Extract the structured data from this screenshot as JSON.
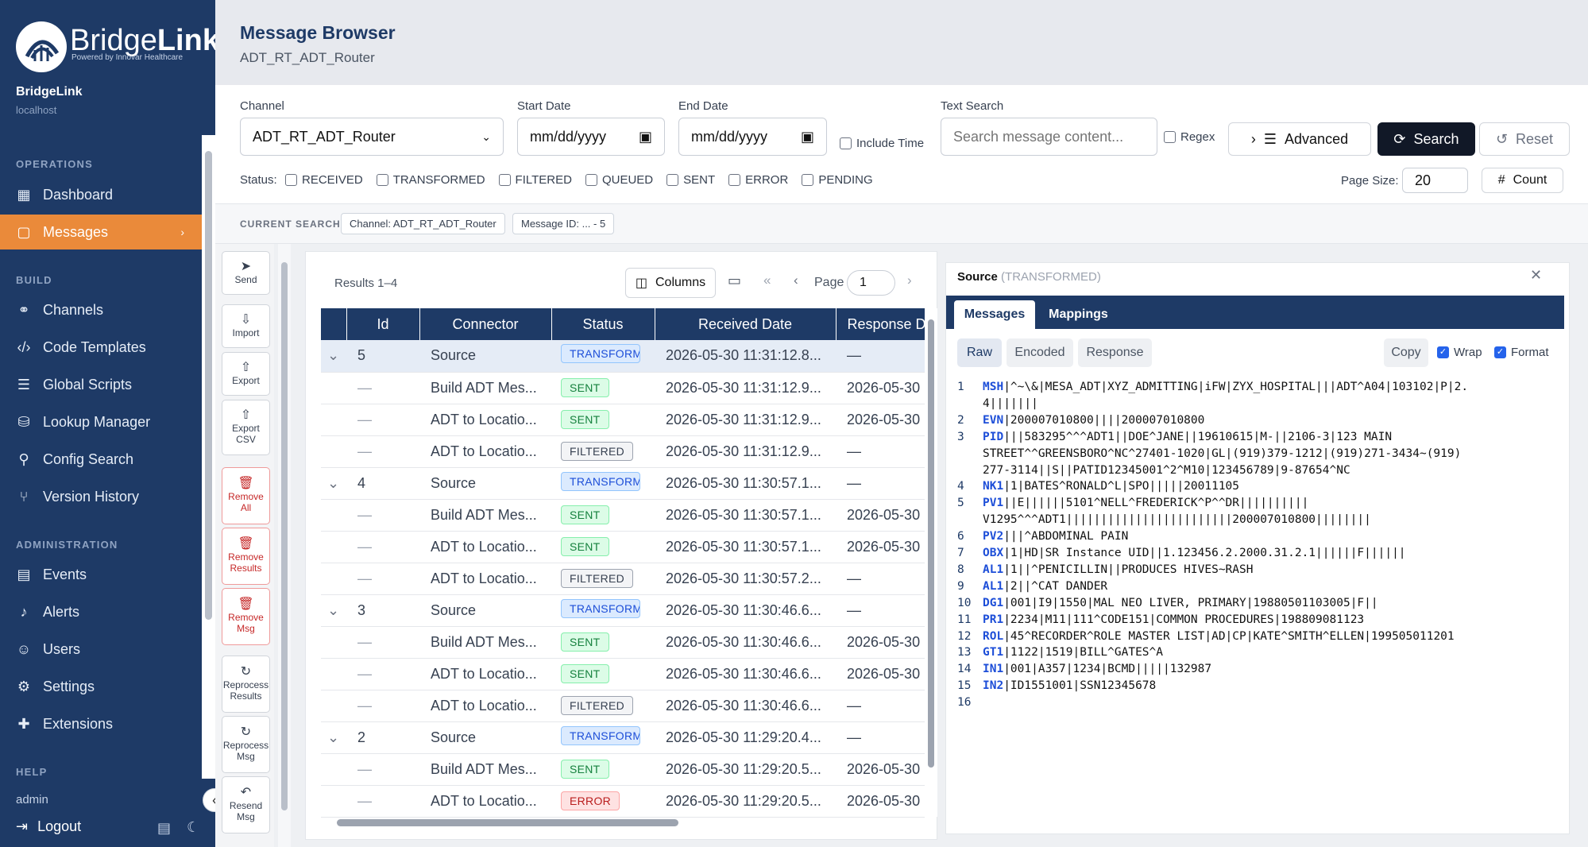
{
  "sidebar": {
    "logo_brand_light": "Bridge",
    "logo_brand_bold": "Link",
    "logo_tagline": "Powered by Innovar Healthcare",
    "app_name": "BridgeLink",
    "host": "localhost",
    "section_operations": "OPERATIONS",
    "section_build": "BUILD",
    "section_administration": "ADMINISTRATION",
    "section_help": "HELP",
    "items": [
      {
        "label": "Dashboard",
        "icon": "grid-icon"
      },
      {
        "label": "Messages",
        "icon": "message-icon",
        "active": true
      },
      {
        "label": "Channels",
        "icon": "channels-icon"
      },
      {
        "label": "Code Templates",
        "icon": "code-icon"
      },
      {
        "label": "Global Scripts",
        "icon": "script-icon"
      },
      {
        "label": "Lookup Manager",
        "icon": "database-icon"
      },
      {
        "label": "Config Search",
        "icon": "search-icon"
      },
      {
        "label": "Version History",
        "icon": "git-branch-icon"
      },
      {
        "label": "Events",
        "icon": "clipboard-icon"
      },
      {
        "label": "Alerts",
        "icon": "bell-icon"
      },
      {
        "label": "Users",
        "icon": "users-icon"
      },
      {
        "label": "Settings",
        "icon": "gear-icon"
      },
      {
        "label": "Extensions",
        "icon": "puzzle-icon"
      }
    ],
    "user": "admin",
    "logout": "Logout"
  },
  "header": {
    "title": "Message Browser",
    "subtitle": "ADT_RT_ADT_Router"
  },
  "filters": {
    "channel_label": "Channel",
    "channel_value": "ADT_RT_ADT_Router",
    "start_label": "Start Date",
    "start_placeholder": "mm/dd/yyyy",
    "end_label": "End Date",
    "end_placeholder": "mm/dd/yyyy",
    "include_time": "Include Time",
    "text_search_label": "Text Search",
    "text_search_placeholder": "Search message content...",
    "regex": "Regex",
    "advanced": "Advanced",
    "search": "Search",
    "reset": "Reset",
    "status_label": "Status:",
    "statuses": [
      "RECEIVED",
      "TRANSFORMED",
      "FILTERED",
      "QUEUED",
      "SENT",
      "ERROR",
      "PENDING"
    ],
    "page_size_label": "Page Size:",
    "page_size": "20",
    "count": "Count"
  },
  "current_search": {
    "label": "CURRENT SEARCH",
    "chips": [
      "Channel: ADT_RT_ADT_Router",
      "Message ID: ... - 5"
    ]
  },
  "tools": [
    {
      "label": "Send",
      "icon": "send-icon",
      "danger": false
    },
    {
      "label": "Import",
      "icon": "import-icon",
      "danger": false
    },
    {
      "label": "Export",
      "icon": "export-icon",
      "danger": false
    },
    {
      "label": "Export CSV",
      "icon": "export-csv-icon",
      "danger": false
    },
    {
      "label": "Remove All",
      "icon": "trash-icon",
      "danger": true
    },
    {
      "label": "Remove Results",
      "icon": "trash-icon",
      "danger": true
    },
    {
      "label": "Remove Msg",
      "icon": "trash-icon",
      "danger": true
    },
    {
      "label": "Reprocess Results",
      "icon": "refresh-icon",
      "danger": false
    },
    {
      "label": "Reprocess Msg",
      "icon": "refresh-icon",
      "danger": false
    },
    {
      "label": "Resend Msg",
      "icon": "undo-icon",
      "danger": false
    }
  ],
  "results": {
    "summary": "Results 1–4",
    "columns_button": "Columns",
    "page_label": "Page",
    "page_value": "1",
    "headers": [
      "Id",
      "Connector",
      "Status",
      "Received Date",
      "Response Date"
    ],
    "rows": [
      {
        "expander": "⌄",
        "id": "5",
        "connector": "Source",
        "status": "TRANSFORMED",
        "received": "2026-05-30 11:31:12.8...",
        "response": "—",
        "source": true,
        "selected": true
      },
      {
        "expander": "",
        "id": "—",
        "connector": "Build ADT Mes...",
        "status": "SENT",
        "received": "2026-05-30 11:31:12.9...",
        "response": "2026-05-30"
      },
      {
        "expander": "",
        "id": "—",
        "connector": "ADT to Locatio...",
        "status": "SENT",
        "received": "2026-05-30 11:31:12.9...",
        "response": "2026-05-30"
      },
      {
        "expander": "",
        "id": "—",
        "connector": "ADT to Locatio...",
        "status": "FILTERED",
        "received": "2026-05-30 11:31:12.9...",
        "response": "—"
      },
      {
        "expander": "⌄",
        "id": "4",
        "connector": "Source",
        "status": "TRANSFORMED",
        "received": "2026-05-30 11:30:57.1...",
        "response": "—",
        "source": true
      },
      {
        "expander": "",
        "id": "—",
        "connector": "Build ADT Mes...",
        "status": "SENT",
        "received": "2026-05-30 11:30:57.1...",
        "response": "2026-05-30"
      },
      {
        "expander": "",
        "id": "—",
        "connector": "ADT to Locatio...",
        "status": "SENT",
        "received": "2026-05-30 11:30:57.1...",
        "response": "2026-05-30"
      },
      {
        "expander": "",
        "id": "—",
        "connector": "ADT to Locatio...",
        "status": "FILTERED",
        "received": "2026-05-30 11:30:57.2...",
        "response": "—"
      },
      {
        "expander": "⌄",
        "id": "3",
        "connector": "Source",
        "status": "TRANSFORMED",
        "received": "2026-05-30 11:30:46.6...",
        "response": "—",
        "source": true
      },
      {
        "expander": "",
        "id": "—",
        "connector": "Build ADT Mes...",
        "status": "SENT",
        "received": "2026-05-30 11:30:46.6...",
        "response": "2026-05-30"
      },
      {
        "expander": "",
        "id": "—",
        "connector": "ADT to Locatio...",
        "status": "SENT",
        "received": "2026-05-30 11:30:46.6...",
        "response": "2026-05-30"
      },
      {
        "expander": "",
        "id": "—",
        "connector": "ADT to Locatio...",
        "status": "FILTERED",
        "received": "2026-05-30 11:30:46.6...",
        "response": "—"
      },
      {
        "expander": "⌄",
        "id": "2",
        "connector": "Source",
        "status": "TRANSFORMED",
        "received": "2026-05-30 11:29:20.4...",
        "response": "—",
        "source": true
      },
      {
        "expander": "",
        "id": "—",
        "connector": "Build ADT Mes...",
        "status": "SENT",
        "received": "2026-05-30 11:29:20.5...",
        "response": "2026-05-30"
      },
      {
        "expander": "",
        "id": "—",
        "connector": "ADT to Locatio...",
        "status": "ERROR",
        "received": "2026-05-30 11:29:20.5...",
        "response": "2026-05-30"
      }
    ]
  },
  "detail": {
    "title": "Source",
    "state": "(TRANSFORMED)",
    "tabs": [
      "Messages",
      "Mappings"
    ],
    "views": [
      "Raw",
      "Encoded",
      "Response"
    ],
    "copy": "Copy",
    "wrap": "Wrap",
    "format": "Format",
    "lines": [
      {
        "n": "1",
        "seg": "MSH",
        "rest": "|^~\\&|MESA_ADT|XYZ_ADMITTING|iFW|ZYX_HOSPITAL|||ADT^A04|103102|P|2."
      },
      {
        "n": "",
        "seg": "",
        "rest": "4|||||||"
      },
      {
        "n": "2",
        "seg": "EVN",
        "rest": "|200007010800||||200007010800"
      },
      {
        "n": "3",
        "seg": "PID",
        "rest": "|||583295^^^ADT1||DOE^JANE||19610615|M-||2106-3|123 MAIN"
      },
      {
        "n": "",
        "seg": "",
        "rest": "STREET^^GREENSBORO^NC^27401-1020|GL|(919)379-1212|(919)271-3434~(919)"
      },
      {
        "n": "",
        "seg": "",
        "rest": "277-3114||S||PATID12345001^2^M10|123456789|9-87654^NC"
      },
      {
        "n": "4",
        "seg": "NK1",
        "rest": "|1|BATES^RONALD^L|SPO|||||20011105"
      },
      {
        "n": "5",
        "seg": "PV1",
        "rest": "||E||||||5101^NELL^FREDERICK^P^^DR||||||||||"
      },
      {
        "n": "",
        "seg": "",
        "rest": "V1295^^^ADT1||||||||||||||||||||||||200007010800||||||||"
      },
      {
        "n": "6",
        "seg": "PV2",
        "rest": "|||^ABDOMINAL PAIN"
      },
      {
        "n": "7",
        "seg": "OBX",
        "rest": "|1|HD|SR Instance UID||1.123456.2.2000.31.2.1||||||F||||||"
      },
      {
        "n": "8",
        "seg": "AL1",
        "rest": "|1||^PENICILLIN||PRODUCES HIVES~RASH"
      },
      {
        "n": "9",
        "seg": "AL1",
        "rest": "|2||^CAT DANDER"
      },
      {
        "n": "10",
        "seg": "DG1",
        "rest": "|001|I9|1550|MAL NEO LIVER, PRIMARY|19880501103005|F||"
      },
      {
        "n": "11",
        "seg": "PR1",
        "rest": "|2234|M11|111^CODE151|COMMON PROCEDURES|198809081123"
      },
      {
        "n": "12",
        "seg": "ROL",
        "rest": "|45^RECORDER^ROLE MASTER LIST|AD|CP|KATE^SMITH^ELLEN|199505011201"
      },
      {
        "n": "13",
        "seg": "GT1",
        "rest": "|1122|1519|BILL^GATES^A"
      },
      {
        "n": "14",
        "seg": "IN1",
        "rest": "|001|A357|1234|BCMD|||||132987"
      },
      {
        "n": "15",
        "seg": "IN2",
        "rest": "|ID1551001|SSN12345678"
      },
      {
        "n": "16",
        "seg": "",
        "rest": ""
      }
    ]
  },
  "colors": {
    "sidebar_bg": "#1e3a66",
    "accent": "#ea8a3a",
    "table_header": "#1e3a66",
    "search_button": "#111827"
  }
}
